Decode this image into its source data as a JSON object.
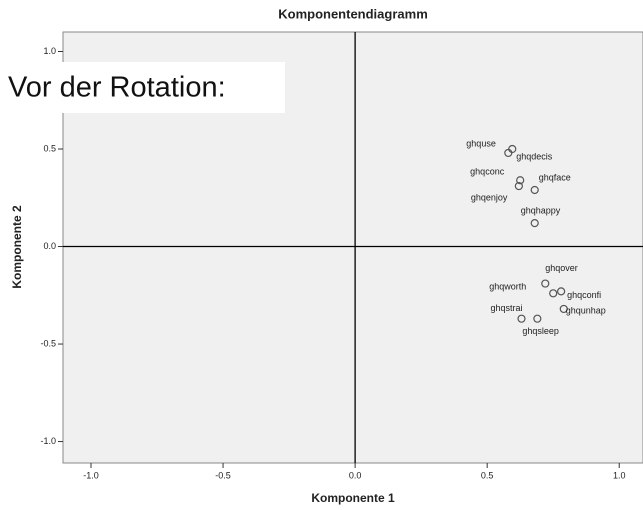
{
  "chart_data": {
    "type": "scatter",
    "title": "Komponentendiagramm",
    "annotation": "Vor der Rotation:",
    "xlabel": "Komponente 1",
    "ylabel": "Komponente 2",
    "xlim": [
      -1.106,
      1.09
    ],
    "ylim": [
      -1.11,
      1.1
    ],
    "xticks": [
      {
        "value": -1.0,
        "label": "-1.0"
      },
      -0.5,
      {
        "value": 0.0,
        "label": "0.0"
      },
      0.5,
      {
        "value": 1.0,
        "label": "1.0"
      }
    ],
    "yticks": [
      {
        "value": -1.0,
        "label": "-1.0"
      },
      -0.5,
      {
        "value": 0.0,
        "label": "0.0"
      },
      0.5,
      {
        "value": 1.0,
        "label": "1.0"
      }
    ],
    "color": "#555555",
    "labels": [
      "ghquse",
      "ghqdecis",
      "ghqconc",
      "ghqenjoy",
      "ghqface",
      "ghqhappy",
      "ghqover",
      "ghqworth",
      "ghqconfi",
      "ghqunhap",
      "ghqstrai",
      "ghqsleep"
    ],
    "x": [
      0.58,
      0.595,
      0.625,
      0.62,
      0.68,
      0.68,
      0.72,
      0.75,
      0.78,
      0.79,
      0.63,
      0.69
    ],
    "values": [
      0.48,
      0.5,
      0.34,
      0.31,
      0.29,
      0.12,
      -0.19,
      -0.24,
      -0.23,
      -0.32,
      -0.37,
      -0.37
    ]
  }
}
